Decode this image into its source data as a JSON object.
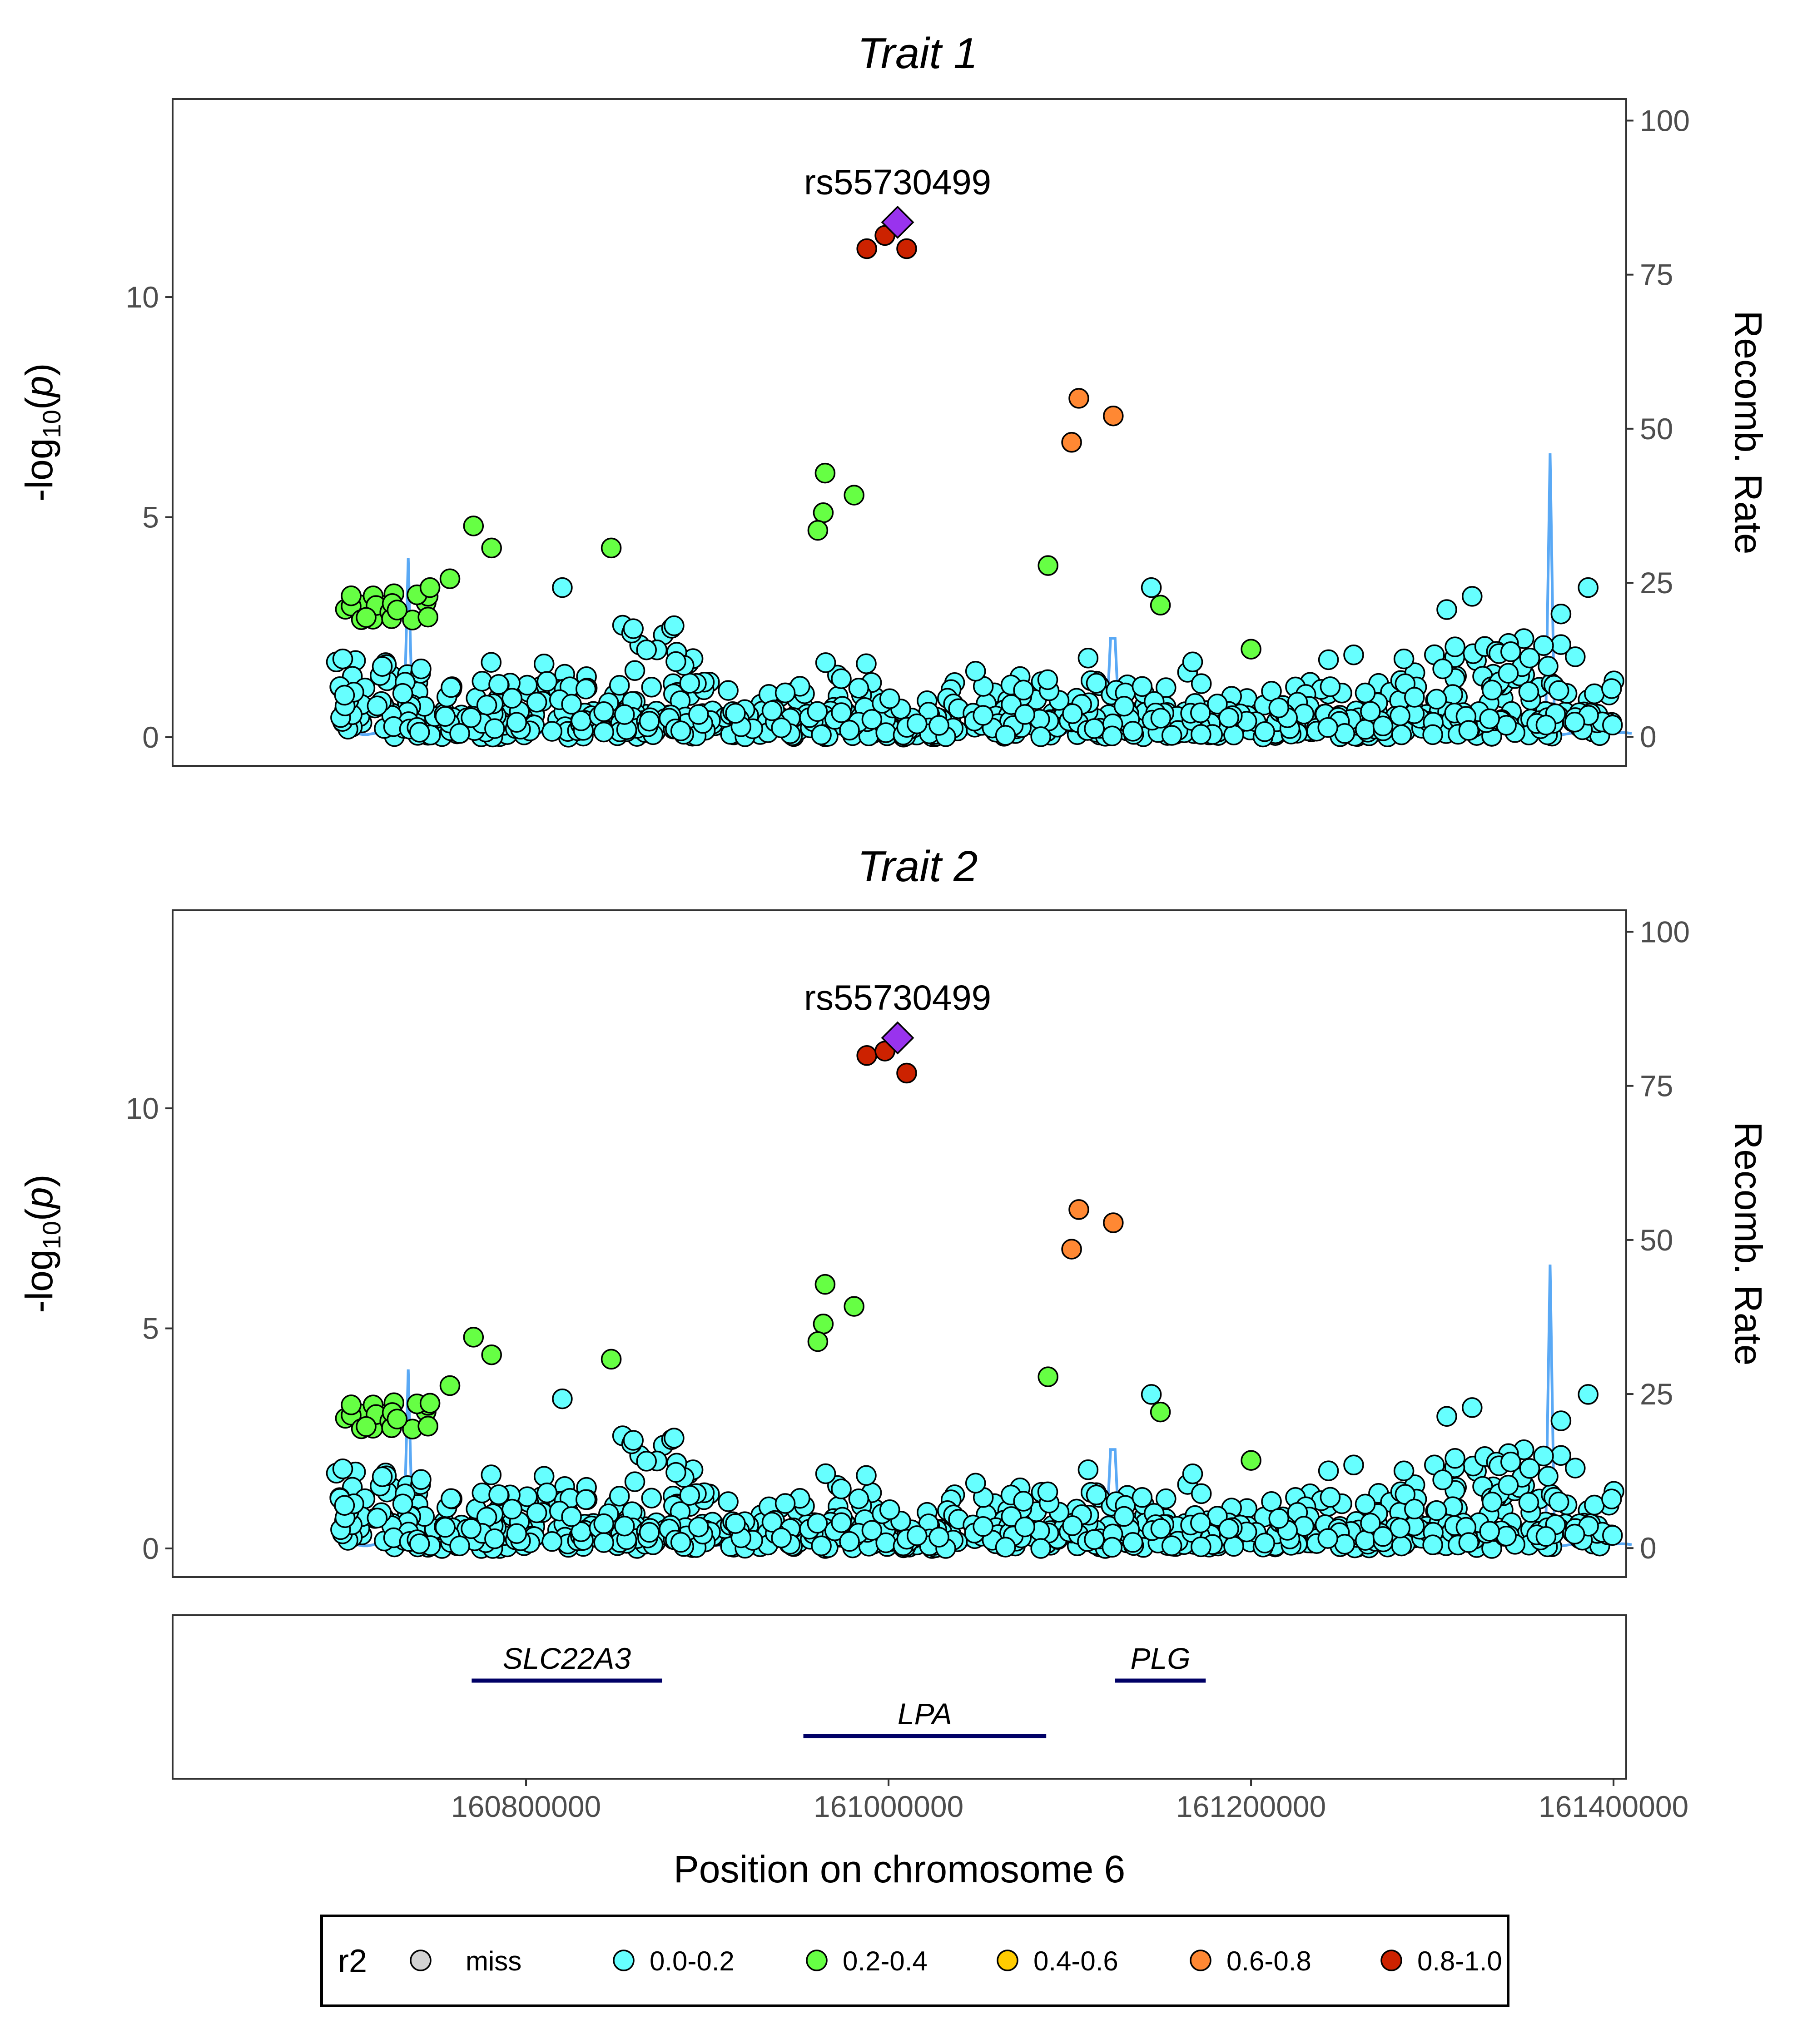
{
  "chart_data": [
    {
      "type": "scatter",
      "title": "Trait 1",
      "ylabel_left": "-log10(p)",
      "ylabel_right": "Recomb. Rate",
      "ylim_left": [
        0,
        14
      ],
      "yticks_left": [
        "0",
        "5",
        "10"
      ],
      "ylim_right": [
        0,
        100
      ],
      "yticks_right": [
        "0",
        "25",
        "50",
        "75",
        "100"
      ],
      "lead_snp": {
        "label": "rs55730499",
        "position": 161005000,
        "logp": 11.7
      },
      "notable_points": [
        {
          "position": 160988000,
          "logp": 11.1,
          "r2": "0.8-1.0"
        },
        {
          "position": 160998000,
          "logp": 11.4,
          "r2": "0.8-1.0"
        },
        {
          "position": 161010000,
          "logp": 11.1,
          "r2": "0.8-1.0"
        },
        {
          "position": 161105000,
          "logp": 7.7,
          "r2": "0.6-0.8"
        },
        {
          "position": 161124000,
          "logp": 7.3,
          "r2": "0.6-0.8"
        },
        {
          "position": 161101000,
          "logp": 6.7,
          "r2": "0.6-0.8"
        },
        {
          "position": 160965000,
          "logp": 6.0,
          "r2": "0.2-0.4"
        },
        {
          "position": 160981000,
          "logp": 5.5,
          "r2": "0.2-0.4"
        },
        {
          "position": 160964000,
          "logp": 5.1,
          "r2": "0.2-0.4"
        },
        {
          "position": 160961000,
          "logp": 4.7,
          "r2": "0.2-0.4"
        },
        {
          "position": 160771000,
          "logp": 4.8,
          "r2": "0.2-0.4"
        },
        {
          "position": 160781000,
          "logp": 4.3,
          "r2": "0.2-0.4"
        },
        {
          "position": 160847000,
          "logp": 4.3,
          "r2": "0.2-0.4"
        },
        {
          "position": 161088000,
          "logp": 3.9,
          "r2": "0.2-0.4"
        },
        {
          "position": 161150000,
          "logp": 3.0,
          "r2": "0.2-0.4"
        },
        {
          "position": 160758000,
          "logp": 3.6,
          "r2": "0.2-0.4"
        },
        {
          "position": 160747000,
          "logp": 3.4,
          "r2": "0.2-0.4"
        },
        {
          "position": 161200000,
          "logp": 2.0,
          "r2": "0.2-0.4"
        },
        {
          "position": 161145000,
          "logp": 3.4,
          "r2": "0.0-0.2"
        },
        {
          "position": 160820000,
          "logp": 3.4,
          "r2": "0.0-0.2"
        },
        {
          "position": 161386000,
          "logp": 3.4,
          "r2": "0.0-0.2"
        },
        {
          "position": 161322000,
          "logp": 3.2,
          "r2": "0.0-0.2"
        },
        {
          "position": 161308000,
          "logp": 2.9,
          "r2": "0.0-0.2"
        },
        {
          "position": 161371000,
          "logp": 2.8,
          "r2": "0.0-0.2"
        }
      ],
      "recomb_peaks": [
        {
          "position": 160735000,
          "rate": 29
        },
        {
          "position": 161124000,
          "rate": 16
        },
        {
          "position": 161365000,
          "rate": 46
        }
      ]
    },
    {
      "type": "scatter",
      "title": "Trait 2",
      "ylabel_left": "-log10(p)",
      "ylabel_right": "Recomb. Rate",
      "ylim_left": [
        0,
        14
      ],
      "yticks_left": [
        "0",
        "5",
        "10"
      ],
      "ylim_right": [
        0,
        100
      ],
      "yticks_right": [
        "0",
        "25",
        "50",
        "75",
        "100"
      ],
      "lead_snp": {
        "label": "rs55730499",
        "position": 161005000,
        "logp": 11.6
      },
      "notable_points": [
        {
          "position": 160988000,
          "logp": 11.2,
          "r2": "0.8-1.0"
        },
        {
          "position": 160998000,
          "logp": 11.3,
          "r2": "0.8-1.0"
        },
        {
          "position": 161010000,
          "logp": 10.8,
          "r2": "0.8-1.0"
        },
        {
          "position": 161105000,
          "logp": 7.7,
          "r2": "0.6-0.8"
        },
        {
          "position": 161124000,
          "logp": 7.4,
          "r2": "0.6-0.8"
        },
        {
          "position": 161101000,
          "logp": 6.8,
          "r2": "0.6-0.8"
        },
        {
          "position": 160965000,
          "logp": 6.0,
          "r2": "0.2-0.4"
        },
        {
          "position": 160981000,
          "logp": 5.5,
          "r2": "0.2-0.4"
        },
        {
          "position": 160964000,
          "logp": 5.1,
          "r2": "0.2-0.4"
        },
        {
          "position": 160961000,
          "logp": 4.7,
          "r2": "0.2-0.4"
        },
        {
          "position": 160771000,
          "logp": 4.8,
          "r2": "0.2-0.4"
        },
        {
          "position": 160781000,
          "logp": 4.4,
          "r2": "0.2-0.4"
        },
        {
          "position": 160847000,
          "logp": 4.3,
          "r2": "0.2-0.4"
        },
        {
          "position": 161088000,
          "logp": 3.9,
          "r2": "0.2-0.4"
        },
        {
          "position": 161150000,
          "logp": 3.1,
          "r2": "0.2-0.4"
        },
        {
          "position": 160758000,
          "logp": 3.7,
          "r2": "0.2-0.4"
        },
        {
          "position": 160747000,
          "logp": 3.3,
          "r2": "0.2-0.4"
        },
        {
          "position": 161200000,
          "logp": 2.0,
          "r2": "0.2-0.4"
        },
        {
          "position": 161145000,
          "logp": 3.5,
          "r2": "0.0-0.2"
        },
        {
          "position": 160820000,
          "logp": 3.4,
          "r2": "0.0-0.2"
        },
        {
          "position": 161386000,
          "logp": 3.5,
          "r2": "0.0-0.2"
        },
        {
          "position": 161322000,
          "logp": 3.2,
          "r2": "0.0-0.2"
        },
        {
          "position": 161308000,
          "logp": 3.0,
          "r2": "0.0-0.2"
        },
        {
          "position": 161371000,
          "logp": 2.9,
          "r2": "0.0-0.2"
        }
      ],
      "recomb_peaks": [
        {
          "position": 160735000,
          "rate": 29
        },
        {
          "position": 161124000,
          "rate": 16
        },
        {
          "position": 161365000,
          "rate": 46
        }
      ]
    },
    {
      "type": "gene_track",
      "genes": [
        {
          "name": "SLC22A3",
          "start": 160770000,
          "end": 160875000
        },
        {
          "name": "PLG",
          "start": 161125000,
          "end": 161175000
        },
        {
          "name": "LPA",
          "start": 160953000,
          "end": 161087000
        }
      ]
    }
  ],
  "x_axis": {
    "label": "Position on chromosome 6",
    "range": [
      160605000,
      161407000
    ],
    "ticks": [
      "160800000",
      "161000000",
      "161200000",
      "161400000"
    ]
  },
  "legend": {
    "title": "r2",
    "items": [
      {
        "label": "miss",
        "color": "#d3d3d3"
      },
      {
        "label": "0.0-0.2",
        "color": "#66ffff"
      },
      {
        "label": "0.2-0.4",
        "color": "#66ff44"
      },
      {
        "label": "0.4-0.6",
        "color": "#ffcc00"
      },
      {
        "label": "0.6-0.8",
        "color": "#ff8833"
      },
      {
        "label": "0.8-1.0",
        "color": "#cc2200"
      }
    ],
    "lead_color": "#9933ee",
    "recomb_color": "#5aa9f5",
    "gene_color": "#000066"
  }
}
